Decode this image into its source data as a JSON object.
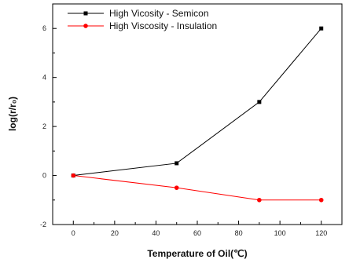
{
  "chart_data": {
    "type": "line",
    "xlabel": "Temperature of Oil(℃)",
    "ylabel": "log(r/r₀)",
    "xlim": [
      -10,
      130
    ],
    "ylim": [
      -2,
      7
    ],
    "xticks": [
      0,
      20,
      40,
      60,
      80,
      100,
      120
    ],
    "yticks": [
      -2,
      0,
      2,
      4,
      6
    ],
    "legend_position": "top-left",
    "series": [
      {
        "name": "High Vicosity - Semicon",
        "color": "#000000",
        "marker": "square",
        "x": [
          0,
          50,
          90,
          120
        ],
        "y": [
          0,
          0.5,
          3.0,
          6.0
        ]
      },
      {
        "name": "High Viscosity - Insulation",
        "color": "#ff0000",
        "marker": "circle",
        "x": [
          0,
          50,
          90,
          120
        ],
        "y": [
          0,
          -0.5,
          -1.0,
          -1.0
        ]
      }
    ]
  }
}
